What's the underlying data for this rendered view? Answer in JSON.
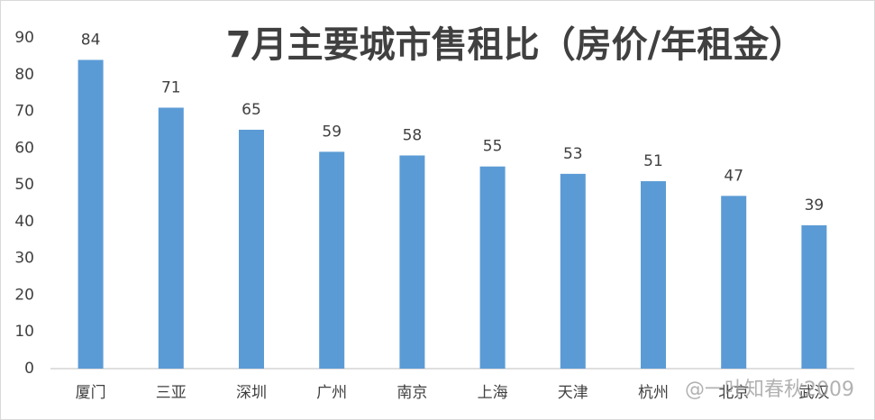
{
  "chart_data": {
    "type": "bar",
    "title": "7月主要城市售租比（房价/年租金）",
    "categories": [
      "厦门",
      "三亚",
      "深圳",
      "广州",
      "南京",
      "上海",
      "天津",
      "杭州",
      "北京",
      "武汉"
    ],
    "values": [
      84,
      71,
      65,
      59,
      58,
      55,
      53,
      51,
      47,
      39
    ],
    "color": "#5b9bd5",
    "ylim": [
      0,
      90
    ],
    "yticks": [
      0,
      10,
      20,
      30,
      40,
      50,
      60,
      70,
      80,
      90
    ],
    "grid": false,
    "watermark": "@一叶知春秋2009"
  }
}
